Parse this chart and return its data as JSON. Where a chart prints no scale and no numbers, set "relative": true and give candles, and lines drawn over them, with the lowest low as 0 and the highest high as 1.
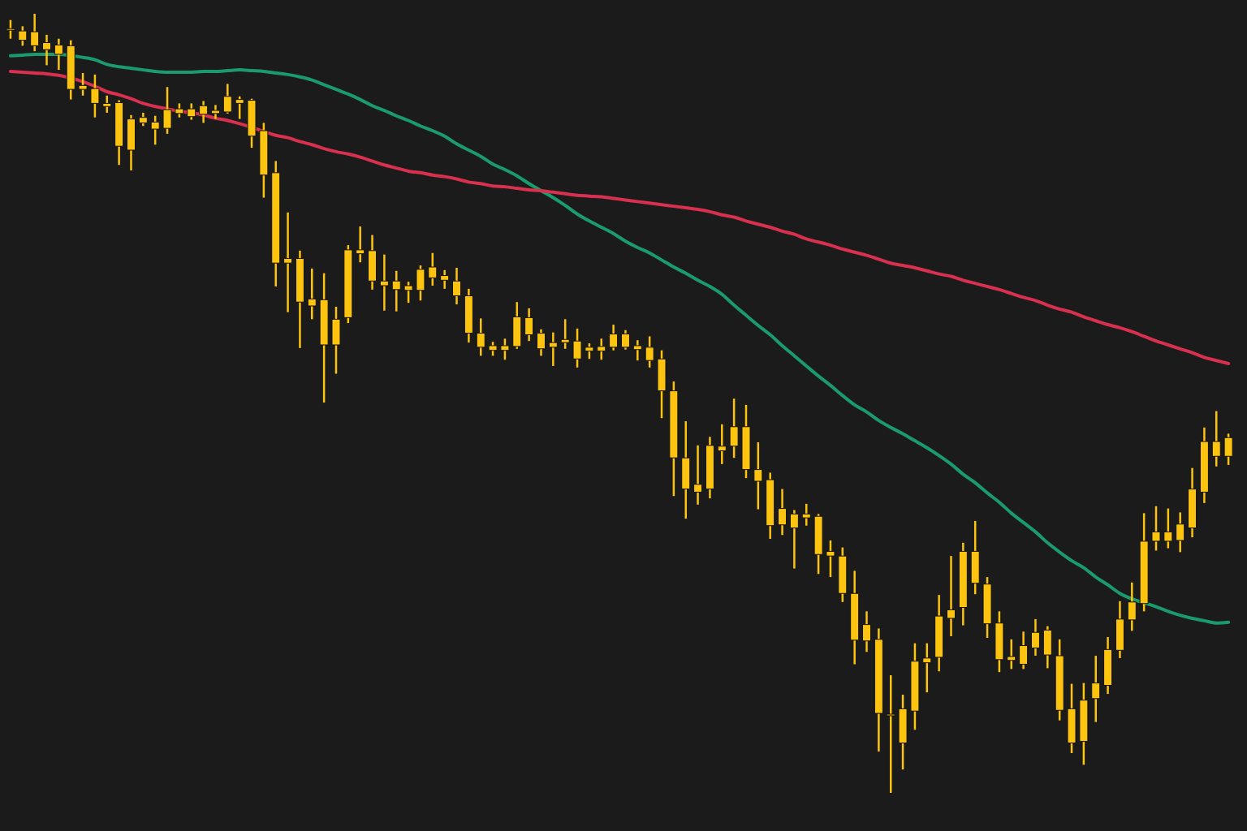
{
  "chart_data": {
    "type": "candlestick",
    "relative": true,
    "color": "#fcc40f",
    "categories": [
      null,
      null,
      null,
      null,
      null,
      null,
      null,
      null,
      null,
      null,
      null,
      null,
      null,
      null,
      null,
      null,
      null,
      null,
      null,
      null,
      null,
      null,
      null,
      null,
      null,
      null,
      null,
      null,
      null,
      null,
      null,
      null,
      null,
      null,
      null,
      null,
      null,
      null,
      null,
      null,
      null,
      null,
      null,
      null,
      null,
      null,
      null,
      null,
      null,
      null,
      null,
      null,
      null,
      null,
      null,
      null,
      null,
      null,
      null,
      null,
      null,
      null,
      null,
      null,
      null,
      null,
      null,
      null,
      null,
      null,
      null,
      null,
      null,
      null,
      null,
      null,
      null,
      null,
      null,
      null,
      null,
      null,
      null,
      null,
      null,
      null,
      null,
      null,
      null,
      null,
      null,
      null,
      null,
      null,
      null,
      null,
      null,
      null,
      null,
      null,
      null,
      null
    ],
    "ohlc": [
      [
        0.981,
        0.992,
        0.968,
        0.979
      ],
      [
        0.978,
        0.984,
        0.959,
        0.966
      ],
      [
        0.977,
        1.0,
        0.952,
        0.959
      ],
      [
        0.963,
        0.973,
        0.934,
        0.954
      ],
      [
        0.96,
        0.968,
        0.928,
        0.948
      ],
      [
        0.959,
        0.966,
        0.89,
        0.903
      ],
      [
        0.908,
        0.924,
        0.895,
        0.903
      ],
      [
        0.904,
        0.922,
        0.867,
        0.885
      ],
      [
        0.885,
        0.895,
        0.873,
        0.881
      ],
      [
        0.886,
        0.889,
        0.806,
        0.83
      ],
      [
        0.865,
        0.87,
        0.799,
        0.825
      ],
      [
        0.867,
        0.873,
        0.856,
        0.86
      ],
      [
        0.861,
        0.869,
        0.832,
        0.852
      ],
      [
        0.877,
        0.906,
        0.846,
        0.853
      ],
      [
        0.878,
        0.885,
        0.867,
        0.872
      ],
      [
        0.878,
        0.885,
        0.864,
        0.868
      ],
      [
        0.882,
        0.888,
        0.86,
        0.871
      ],
      [
        0.876,
        0.883,
        0.865,
        0.872
      ],
      [
        0.894,
        0.91,
        0.872,
        0.874
      ],
      [
        0.89,
        0.894,
        0.865,
        0.885
      ],
      [
        0.889,
        0.891,
        0.828,
        0.843
      ],
      [
        0.85,
        0.86,
        0.764,
        0.793
      ],
      [
        0.796,
        0.811,
        0.65,
        0.68
      ],
      [
        0.686,
        0.745,
        0.617,
        0.68
      ],
      [
        0.686,
        0.696,
        0.571,
        0.63
      ],
      [
        0.634,
        0.673,
        0.608,
        0.625
      ],
      [
        0.633,
        0.667,
        0.501,
        0.575
      ],
      [
        0.608,
        0.624,
        0.538,
        0.575
      ],
      [
        0.697,
        0.703,
        0.603,
        0.61
      ],
      [
        0.697,
        0.727,
        0.681,
        0.692
      ],
      [
        0.696,
        0.716,
        0.646,
        0.657
      ],
      [
        0.657,
        0.691,
        0.619,
        0.651
      ],
      [
        0.657,
        0.67,
        0.618,
        0.646
      ],
      [
        0.651,
        0.656,
        0.629,
        0.645
      ],
      [
        0.672,
        0.677,
        0.632,
        0.645
      ],
      [
        0.675,
        0.693,
        0.651,
        0.661
      ],
      [
        0.664,
        0.671,
        0.647,
        0.658
      ],
      [
        0.657,
        0.674,
        0.627,
        0.638
      ],
      [
        0.638,
        0.647,
        0.578,
        0.59
      ],
      [
        0.59,
        0.609,
        0.561,
        0.572
      ],
      [
        0.574,
        0.579,
        0.561,
        0.568
      ],
      [
        0.574,
        0.583,
        0.556,
        0.568
      ],
      [
        0.611,
        0.63,
        0.57,
        0.573
      ],
      [
        0.61,
        0.622,
        0.58,
        0.588
      ],
      [
        0.59,
        0.595,
        0.561,
        0.57
      ],
      [
        0.578,
        0.591,
        0.548,
        0.572
      ],
      [
        0.582,
        0.608,
        0.57,
        0.578
      ],
      [
        0.58,
        0.596,
        0.546,
        0.557
      ],
      [
        0.572,
        0.577,
        0.557,
        0.567
      ],
      [
        0.573,
        0.583,
        0.556,
        0.567
      ],
      [
        0.589,
        0.601,
        0.568,
        0.572
      ],
      [
        0.589,
        0.594,
        0.569,
        0.572
      ],
      [
        0.574,
        0.581,
        0.555,
        0.569
      ],
      [
        0.572,
        0.586,
        0.546,
        0.555
      ],
      [
        0.557,
        0.568,
        0.481,
        0.516
      ],
      [
        0.516,
        0.528,
        0.381,
        0.43
      ],
      [
        0.43,
        0.477,
        0.352,
        0.39
      ],
      [
        0.396,
        0.446,
        0.37,
        0.386
      ],
      [
        0.446,
        0.457,
        0.378,
        0.39
      ],
      [
        0.445,
        0.473,
        0.422,
        0.439
      ],
      [
        0.47,
        0.506,
        0.43,
        0.445
      ],
      [
        0.47,
        0.498,
        0.404,
        0.415
      ],
      [
        0.415,
        0.45,
        0.364,
        0.4
      ],
      [
        0.402,
        0.411,
        0.326,
        0.343
      ],
      [
        0.365,
        0.39,
        0.331,
        0.344
      ],
      [
        0.358,
        0.363,
        0.288,
        0.34
      ],
      [
        0.358,
        0.371,
        0.343,
        0.353
      ],
      [
        0.355,
        0.358,
        0.281,
        0.306
      ],
      [
        0.31,
        0.324,
        0.277,
        0.304
      ],
      [
        0.304,
        0.315,
        0.245,
        0.256
      ],
      [
        0.256,
        0.285,
        0.165,
        0.196
      ],
      [
        0.216,
        0.233,
        0.181,
        0.195
      ],
      [
        0.197,
        0.211,
        0.053,
        0.102
      ],
      [
        0.101,
        0.151,
        0.0,
        0.099
      ],
      [
        0.108,
        0.126,
        0.03,
        0.064
      ],
      [
        0.169,
        0.192,
        0.081,
        0.105
      ],
      [
        0.173,
        0.192,
        0.129,
        0.167
      ],
      [
        0.227,
        0.254,
        0.156,
        0.174
      ],
      [
        0.235,
        0.304,
        0.201,
        0.224
      ],
      [
        0.31,
        0.321,
        0.215,
        0.238
      ],
      [
        0.31,
        0.349,
        0.255,
        0.269
      ],
      [
        0.268,
        0.277,
        0.199,
        0.217
      ],
      [
        0.218,
        0.233,
        0.155,
        0.171
      ],
      [
        0.175,
        0.197,
        0.159,
        0.17
      ],
      [
        0.189,
        0.207,
        0.159,
        0.165
      ],
      [
        0.206,
        0.223,
        0.176,
        0.186
      ],
      [
        0.209,
        0.214,
        0.16,
        0.177
      ],
      [
        0.176,
        0.197,
        0.093,
        0.106
      ],
      [
        0.108,
        0.14,
        0.051,
        0.064
      ],
      [
        0.119,
        0.141,
        0.036,
        0.066
      ],
      [
        0.141,
        0.176,
        0.091,
        0.121
      ],
      [
        0.184,
        0.2,
        0.127,
        0.138
      ],
      [
        0.223,
        0.246,
        0.173,
        0.183
      ],
      [
        0.245,
        0.27,
        0.208,
        0.222
      ],
      [
        0.323,
        0.359,
        0.233,
        0.243
      ],
      [
        0.335,
        0.368,
        0.311,
        0.323
      ],
      [
        0.335,
        0.365,
        0.314,
        0.323
      ],
      [
        0.345,
        0.36,
        0.309,
        0.324
      ],
      [
        0.39,
        0.417,
        0.328,
        0.34
      ],
      [
        0.451,
        0.469,
        0.372,
        0.386
      ],
      [
        0.451,
        0.49,
        0.419,
        0.432
      ],
      [
        0.456,
        0.461,
        0.421,
        0.432
      ]
    ],
    "series": [
      {
        "type": "line",
        "color": "#1b9b6d",
        "values": [
          0.946,
          0.947,
          0.948,
          0.948,
          0.948,
          null,
          0.944,
          0.941,
          0.935,
          0.932,
          0.93,
          0.928,
          0.926,
          0.925,
          0.925,
          0.925,
          0.926,
          0.926,
          0.927,
          0.928,
          0.927,
          0.926,
          0.924,
          0.922,
          0.919,
          0.915,
          0.909,
          0.903,
          0.897,
          0.89,
          0.882,
          0.876,
          0.869,
          0.863,
          0.856,
          0.85,
          0.843,
          0.833,
          0.825,
          0.817,
          0.807,
          0.8,
          0.792,
          0.782,
          0.773,
          0.764,
          0.754,
          0.743,
          0.734,
          0.726,
          0.718,
          0.708,
          0.7,
          0.693,
          0.684,
          0.675,
          0.667,
          0.658,
          0.65,
          0.64,
          0.626,
          0.613,
          0.6,
          0.588,
          0.574,
          0.561,
          0.548,
          0.535,
          0.523,
          0.51,
          0.498,
          0.489,
          0.478,
          0.469,
          0.461,
          0.452,
          0.443,
          0.433,
          0.422,
          0.409,
          0.398,
          0.385,
          0.373,
          0.359,
          0.347,
          0.335,
          0.321,
          0.309,
          0.298,
          0.289,
          0.277,
          0.267,
          0.256,
          0.249,
          0.244,
          0.239,
          0.233,
          0.228,
          0.224,
          0.221,
          0.218,
          0.219
        ]
      },
      {
        "type": "line",
        "color": "#d8304f",
        "values": [
          0.926,
          0.925,
          0.924,
          0.923,
          0.921,
          null,
          0.913,
          0.907,
          0.9,
          0.896,
          0.891,
          0.885,
          0.881,
          0.878,
          0.875,
          0.873,
          0.87,
          0.866,
          0.863,
          0.859,
          null,
          0.849,
          0.844,
          0.841,
          0.836,
          0.832,
          0.827,
          0.823,
          0.82,
          0.816,
          0.811,
          0.806,
          0.802,
          0.798,
          0.796,
          0.793,
          0.791,
          0.788,
          0.784,
          0.782,
          0.779,
          0.778,
          0.776,
          0.774,
          0.773,
          0.771,
          0.769,
          0.767,
          0.766,
          0.765,
          0.763,
          0.761,
          0.759,
          0.757,
          0.755,
          0.753,
          0.751,
          0.749,
          0.746,
          0.742,
          0.739,
          0.734,
          0.73,
          0.726,
          0.721,
          0.717,
          0.711,
          0.707,
          0.703,
          0.698,
          0.694,
          0.69,
          0.685,
          0.68,
          0.677,
          0.674,
          0.67,
          0.666,
          0.663,
          0.658,
          0.654,
          0.65,
          0.646,
          0.641,
          0.636,
          0.632,
          0.626,
          0.621,
          0.617,
          0.611,
          0.606,
          0.601,
          0.597,
          0.592,
          0.586,
          0.58,
          0.575,
          0.57,
          0.565,
          0.559,
          0.555,
          0.551
        ]
      }
    ]
  }
}
